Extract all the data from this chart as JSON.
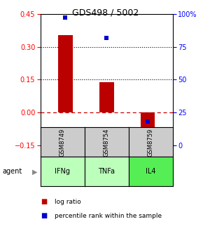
{
  "title": "GDS498 / 5002",
  "categories": [
    "IFNg",
    "TNFa",
    "IL4"
  ],
  "sample_labels": [
    "GSM8749",
    "GSM8754",
    "GSM8759"
  ],
  "log_ratios": [
    0.355,
    0.14,
    -0.085
  ],
  "percentile_ranks": [
    97.5,
    82.0,
    18.0
  ],
  "bar_color": "#bb0000",
  "dot_color": "#0000cc",
  "ylim_left": [
    -0.15,
    0.45
  ],
  "ylim_right": [
    0,
    100
  ],
  "yticks_left": [
    -0.15,
    0.0,
    0.15,
    0.3,
    0.45
  ],
  "yticks_right": [
    0,
    25,
    50,
    75,
    100
  ],
  "ytick_labels_right": [
    "0",
    "25",
    "50",
    "75",
    "100%"
  ],
  "hlines_dotted": [
    0.15,
    0.3
  ],
  "zero_line_color": "#cc0000",
  "sample_bg_color": "#cccccc",
  "bar_width": 0.35,
  "agent_colors": [
    "#bbffbb",
    "#bbffbb",
    "#55ee55"
  ],
  "legend_red_label": "log ratio",
  "legend_blue_label": "percentile rank within the sample"
}
